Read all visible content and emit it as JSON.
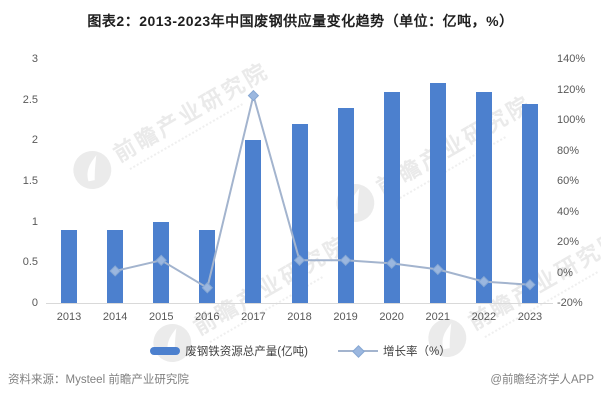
{
  "title": "图表2：2013-2023年中国废钢供应量变化趋势（单位：亿吨，%）",
  "chart_data": {
    "type": "bar",
    "subtype": "bar-line-combo",
    "categories": [
      "2013",
      "2014",
      "2015",
      "2016",
      "2017",
      "2018",
      "2019",
      "2020",
      "2021",
      "2022",
      "2023"
    ],
    "series": [
      {
        "name": "废钢铁资源总产量(亿吨)",
        "type": "bar",
        "axis": "left",
        "values": [
          0.9,
          0.9,
          1.0,
          0.9,
          2.0,
          2.2,
          2.4,
          2.6,
          2.7,
          2.6,
          2.45
        ]
      },
      {
        "name": "增长率（%）",
        "type": "line",
        "axis": "right",
        "values": [
          null,
          1,
          8,
          -10,
          116,
          8,
          8,
          6,
          2,
          -6,
          -8
        ]
      }
    ],
    "left_axis": {
      "min": 0,
      "max": 3,
      "step": 0.5,
      "ticks": [
        "3",
        "2.5",
        "2",
        "1.5",
        "1",
        "0.5",
        "0"
      ]
    },
    "right_axis": {
      "min": -20,
      "max": 140,
      "step": 20,
      "ticks": [
        "140%",
        "120%",
        "100%",
        "80%",
        "60%",
        "40%",
        "20%",
        "0%",
        "-20%"
      ]
    },
    "grid": false,
    "legend_position": "bottom"
  },
  "footer": {
    "source": "资料来源：Mysteel 前瞻产业研究院",
    "brand": "@前瞻经济学人APP"
  },
  "watermark": {
    "text": "前瞻产业研究院"
  },
  "colors": {
    "bar": "#4C80CE",
    "line": "#A3B4CE",
    "marker_fill": "#9BB7DF",
    "marker_edge": "#86A7D3",
    "axis_text": "#595959",
    "title_text": "#1F1F1F",
    "legend_text": "#404040",
    "footer_text": "#808080",
    "baseline": "#D9D9D9",
    "watermark": "#D9D9D9"
  }
}
